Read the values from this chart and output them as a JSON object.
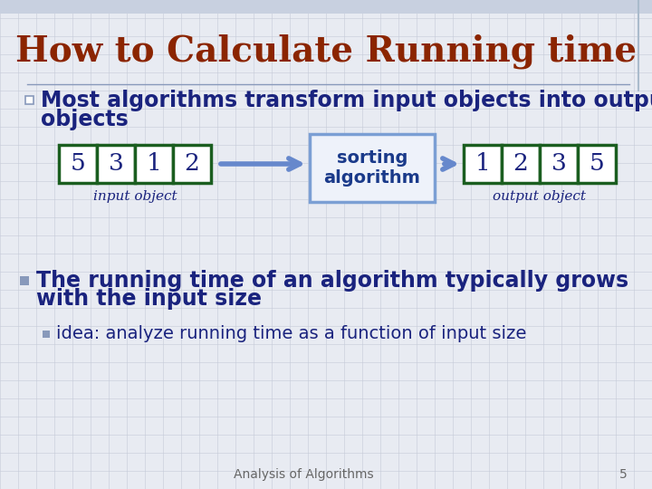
{
  "title": "How to Calculate Running time",
  "title_color": "#8B2500",
  "title_fontsize": 28,
  "bg_color": "#E8EBF2",
  "grid_color": "#C5CAD8",
  "header_bg": "#C8D0E0",
  "bullet1_text_line1": "Most algorithms transform input objects into output",
  "bullet1_text_line2": "objects",
  "bullet1_color": "#1A237E",
  "bullet1_fontsize": 17,
  "input_numbers": [
    "5",
    "3",
    "1",
    "2"
  ],
  "output_numbers": [
    "1",
    "2",
    "3",
    "5"
  ],
  "array_box_color": "#1B5E20",
  "array_text_color": "#1A237E",
  "sorting_text": "sorting\nalgorithm",
  "sorting_box_color": "#7B9FD4",
  "sorting_text_color": "#1A3A8A",
  "arrow_color": "#6688CC",
  "input_label": "input object",
  "output_label": "output object",
  "label_color": "#1A237E",
  "bullet2_text_line1": "The running time of an algorithm typically grows",
  "bullet2_text_line2": "with the input size",
  "bullet2_color": "#1A237E",
  "bullet2_fontsize": 17,
  "sub_bullet_text": "idea: analyze running time as a function of input size",
  "sub_bullet_color": "#1A237E",
  "sub_bullet_fontsize": 14,
  "footer_text": "Analysis of Algorithms",
  "footer_page": "5",
  "footer_color": "#666666",
  "footer_fontsize": 10,
  "bullet_marker_color": "#8899BB"
}
